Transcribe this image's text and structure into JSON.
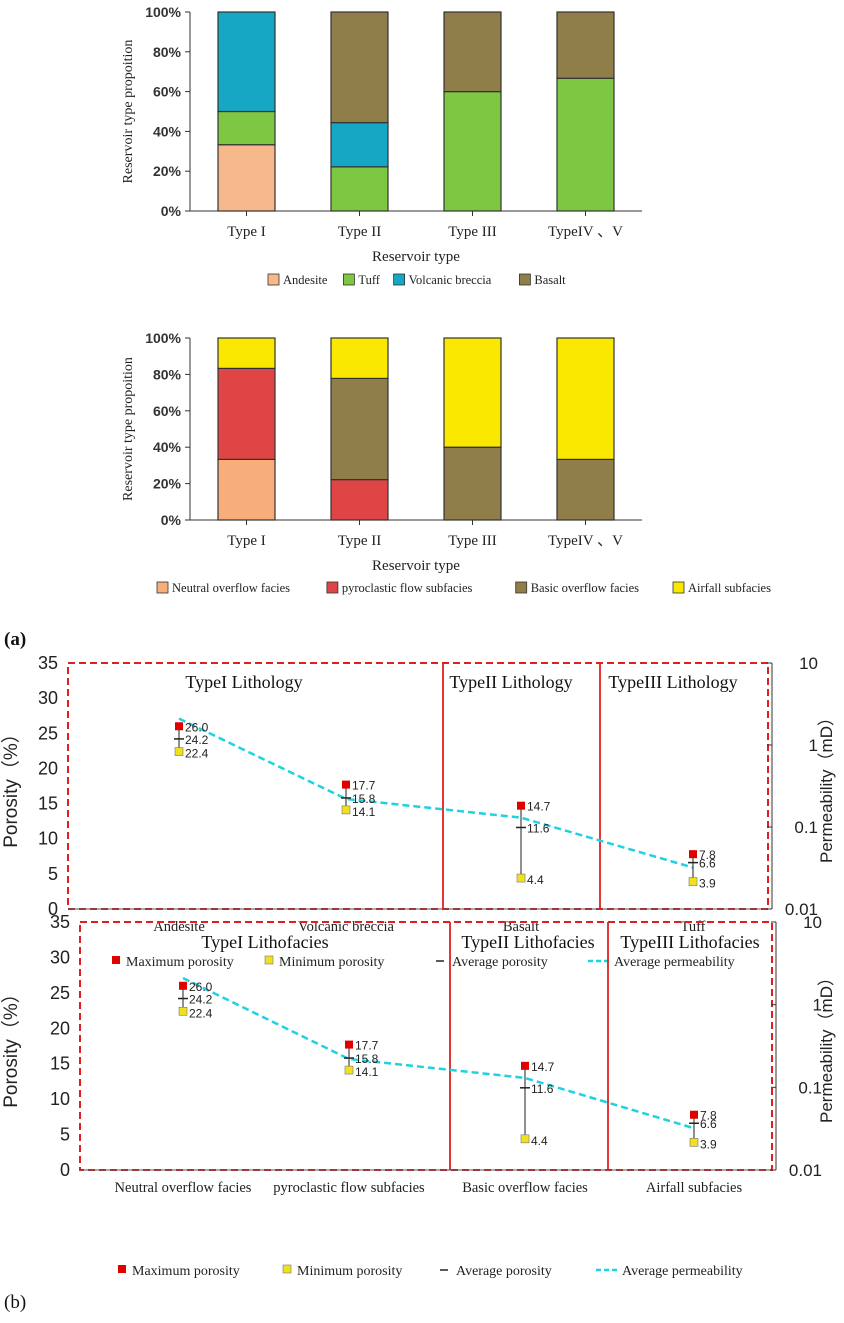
{
  "colors": {
    "andesite": "#f7b98b",
    "tuff": "#7dc742",
    "volcanic_breccia": "#15a7c3",
    "basalt": "#8f7e4a",
    "neutral_overflow": "#f7ae7b",
    "pyroclastic_flow": "#e04545",
    "basic_overflow": "#8f7e4a",
    "airfall": "#fbe800",
    "max_marker": "#e00000",
    "min_marker": "#f0e020",
    "permeability_line": "#1fd2e0",
    "divider": "#e02020"
  },
  "panel_labels": {
    "a": "(a)",
    "b": "(b)"
  },
  "chart_data": [
    {
      "type": "bar",
      "stacked": true,
      "title": "",
      "xlabel": "Reservoir type",
      "ylabel": "Reservoir type propoition",
      "ylim": [
        0,
        100
      ],
      "yticks": [
        "0%",
        "20%",
        "40%",
        "60%",
        "80%",
        "100%"
      ],
      "categories": [
        "Type I",
        "Type II",
        "Type III",
        "TypeIV 、V"
      ],
      "series": [
        {
          "name": "Andesite",
          "color": "#f7b98b",
          "values": [
            33.3,
            0,
            0,
            0
          ]
        },
        {
          "name": "Tuff",
          "color": "#7dc742",
          "values": [
            16.7,
            22.2,
            60,
            66.7
          ]
        },
        {
          "name": "Volcanic breccia",
          "color": "#15a7c3",
          "values": [
            50,
            22.2,
            0,
            0
          ]
        },
        {
          "name": "Basalt",
          "color": "#8f7e4a",
          "values": [
            0,
            55.6,
            40,
            33.3
          ]
        }
      ],
      "legend": "bottom"
    },
    {
      "type": "bar",
      "stacked": true,
      "title": "",
      "xlabel": "Reservoir type",
      "ylabel": "Reservoir type propoition",
      "ylim": [
        0,
        100
      ],
      "yticks": [
        "0%",
        "20%",
        "40%",
        "60%",
        "80%",
        "100%"
      ],
      "categories": [
        "Type I",
        "Type II",
        "Type III",
        "TypeIV 、V"
      ],
      "series": [
        {
          "name": "Neutral overflow facies",
          "color": "#f7ae7b",
          "values": [
            33.3,
            0,
            0,
            0
          ]
        },
        {
          "name": "pyroclastic flow subfacies",
          "color": "#e04545",
          "values": [
            50,
            22.2,
            0,
            0
          ]
        },
        {
          "name": "Basic overflow facies",
          "color": "#8f7e4a",
          "values": [
            0,
            55.6,
            40,
            33.3
          ]
        },
        {
          "name": "Airfall subfacies",
          "color": "#fbe800",
          "values": [
            16.7,
            22.2,
            60,
            66.7
          ]
        }
      ],
      "legend": "bottom"
    },
    {
      "type": "scatter",
      "title": "",
      "ylabel": "Porosity（%）",
      "y2label": "Permeability（mD）",
      "ylim": [
        0,
        35
      ],
      "yticks": [
        "0",
        "5",
        "10",
        "15",
        "20",
        "25",
        "30",
        "35"
      ],
      "y2ticks": [
        "0.01",
        "0.1",
        "1",
        "10"
      ],
      "y2lim_log": [
        0.01,
        10
      ],
      "categories": [
        "Andesite",
        "Volcanic breccia",
        "Basalt",
        "Tuff"
      ],
      "groups": [
        {
          "label": "TypeI Lithology",
          "span": [
            0,
            1
          ]
        },
        {
          "label": "TypeII Lithology",
          "span": [
            2,
            2
          ]
        },
        {
          "label": "TypeIII Lithology",
          "span": [
            3,
            3
          ]
        }
      ],
      "max": [
        26.0,
        17.7,
        14.7,
        7.8
      ],
      "avg": [
        24.2,
        15.8,
        11.6,
        6.6
      ],
      "min": [
        22.4,
        14.1,
        4.4,
        3.9
      ],
      "max_labels": [
        "26.0",
        "17.7",
        "14.7",
        "7.8"
      ],
      "avg_labels": [
        "24.2",
        "15.8",
        "11.6",
        "6.6"
      ],
      "min_labels": [
        "22.4",
        "14.1",
        "4.4",
        "3.9"
      ],
      "permeability": [
        2.1,
        0.22,
        0.13,
        0.032
      ],
      "legend_items": [
        "Maximum porosity",
        "Minimum porosity",
        "Average porosity",
        "Average permeability"
      ]
    },
    {
      "type": "scatter",
      "title": "",
      "ylabel": "Porosity（%）",
      "y2label": "Permeability（mD）",
      "ylim": [
        0,
        35
      ],
      "yticks": [
        "0",
        "5",
        "10",
        "15",
        "20",
        "25",
        "30",
        "35"
      ],
      "y2ticks": [
        "0.01",
        "0.1",
        "1",
        "10"
      ],
      "y2lim_log": [
        0.01,
        10
      ],
      "categories": [
        "Neutral overflow facies",
        "pyroclastic flow subfacies",
        "Basic overflow facies",
        "Airfall subfacies"
      ],
      "groups": [
        {
          "label": "TypeI Lithofacies",
          "span": [
            0,
            1
          ]
        },
        {
          "label": "TypeII Lithofacies",
          "span": [
            2,
            2
          ]
        },
        {
          "label": "TypeIII Lithofacies",
          "span": [
            3,
            3
          ]
        }
      ],
      "max": [
        26.0,
        17.7,
        14.7,
        7.8
      ],
      "avg": [
        24.2,
        15.8,
        11.6,
        6.6
      ],
      "min": [
        22.4,
        14.1,
        4.4,
        3.9
      ],
      "max_labels": [
        "26.0",
        "17.7",
        "14.7",
        "7.8"
      ],
      "avg_labels": [
        "24.2",
        "15.8",
        "11.6",
        "6.6"
      ],
      "min_labels": [
        "22.4",
        "14.1",
        "4.4",
        "3.9"
      ],
      "permeability": [
        2.1,
        0.22,
        0.13,
        0.032
      ],
      "legend_items": [
        "Maximum porosity",
        "Minimum porosity",
        "Average porosity",
        "Average permeability"
      ]
    }
  ]
}
